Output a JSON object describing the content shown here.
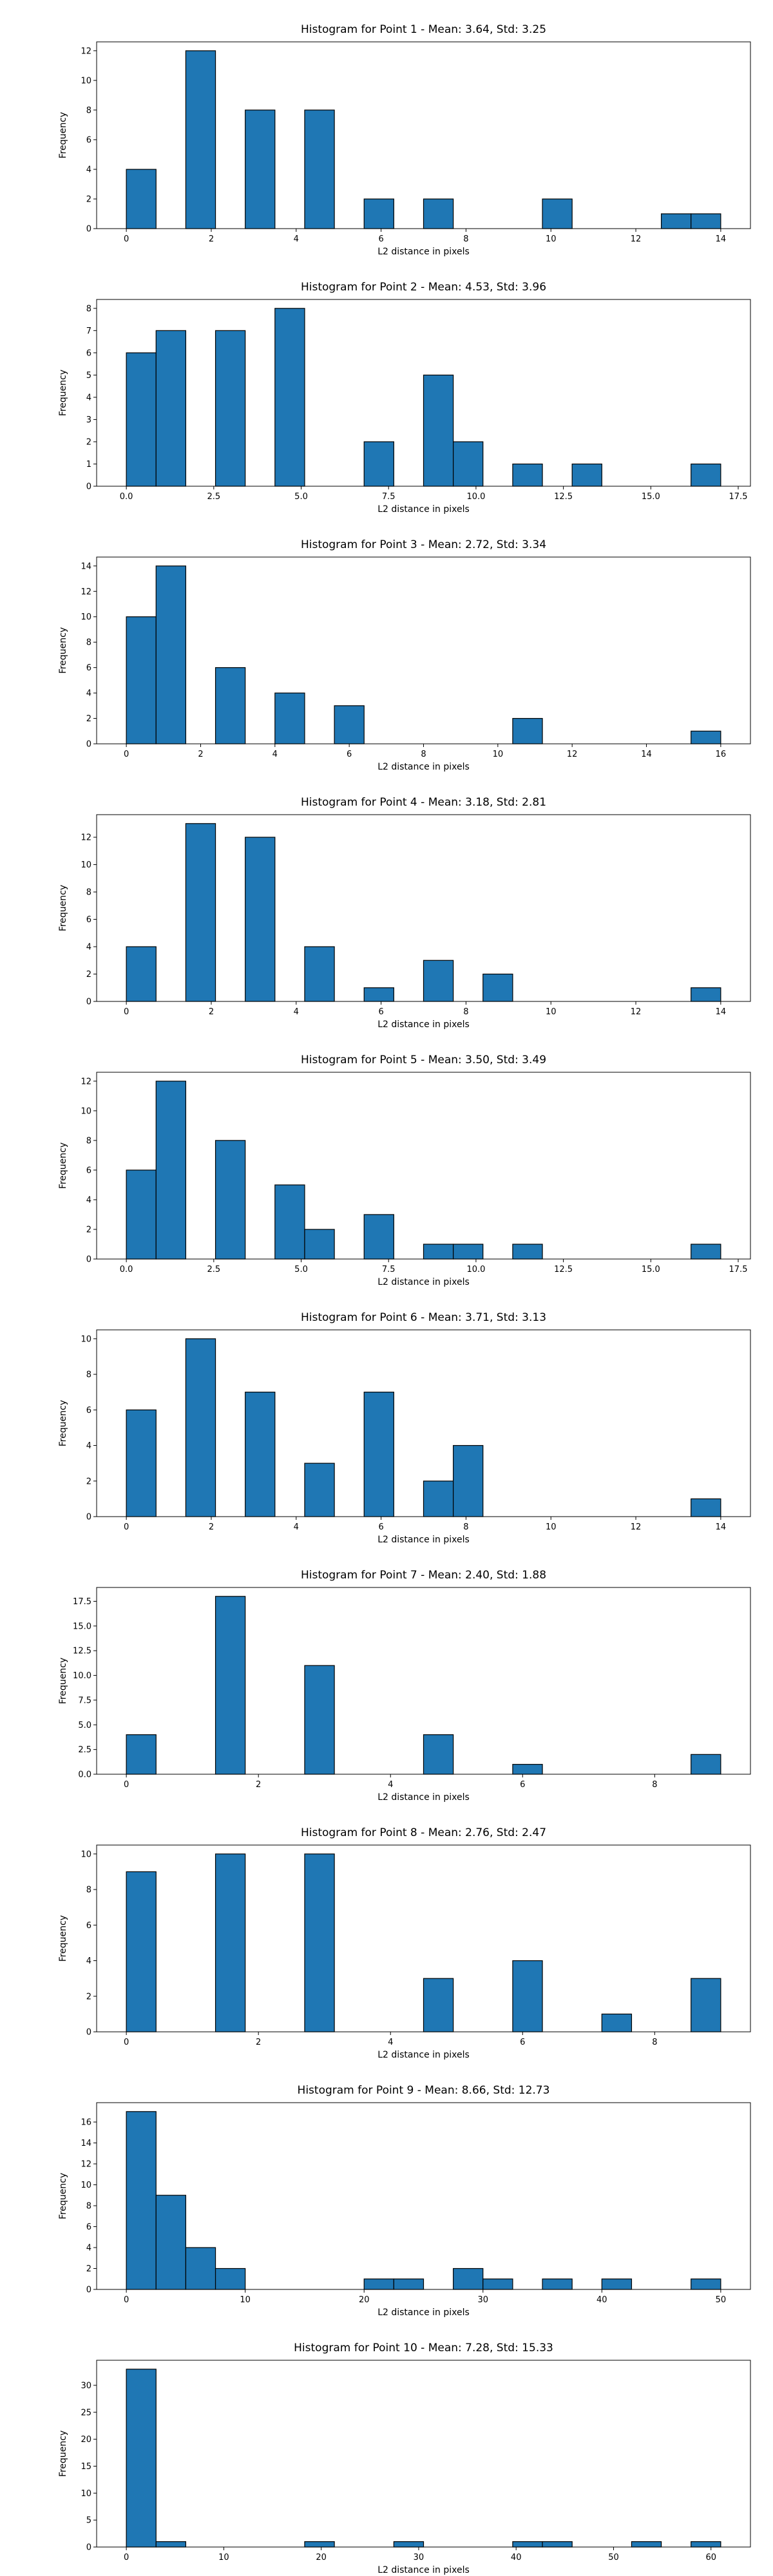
{
  "figure": {
    "bar_color": "#1f77b4",
    "edge_color": "#000000",
    "background": "#ffffff"
  },
  "chart_data": [
    {
      "type": "bar",
      "title": "Histogram for Point 1 - Mean: 3.64, Std: 3.25",
      "xlabel": "L2 distance in pixels",
      "ylabel": "Frequency",
      "xlim": [
        -0.7,
        14.7
      ],
      "ylim": [
        0,
        12.6
      ],
      "xticks": [
        0,
        2,
        4,
        6,
        8,
        10,
        12,
        14
      ],
      "yticks": [
        0,
        2,
        4,
        6,
        8,
        10,
        12
      ],
      "bin_edges": [
        0,
        0.7,
        1.4,
        2.1,
        2.8,
        3.5,
        4.2,
        4.9,
        5.6,
        6.3,
        7.0,
        7.7,
        8.4,
        9.1,
        9.8,
        10.5,
        11.2,
        11.9,
        12.6,
        13.3,
        14.0
      ],
      "counts": [
        4,
        0,
        12,
        0,
        8,
        0,
        8,
        0,
        2,
        0,
        2,
        0,
        0,
        0,
        2,
        0,
        0,
        0,
        1,
        1
      ]
    },
    {
      "type": "bar",
      "title": "Histogram for Point 2 - Mean: 4.53, Std: 3.96",
      "xlabel": "L2 distance in pixels",
      "ylabel": "Frequency",
      "xlim": [
        -0.85,
        17.85
      ],
      "ylim": [
        0,
        8.4
      ],
      "xticks": [
        0.0,
        2.5,
        5.0,
        7.5,
        10.0,
        12.5,
        15.0,
        17.5
      ],
      "xtick_labels": [
        "0.0",
        "2.5",
        "5.0",
        "7.5",
        "10.0",
        "12.5",
        "15.0",
        "17.5"
      ],
      "yticks": [
        0,
        1,
        2,
        3,
        4,
        5,
        6,
        7,
        8
      ],
      "bin_edges": [
        0,
        0.85,
        1.7,
        2.55,
        3.4,
        4.25,
        5.1,
        5.95,
        6.8,
        7.65,
        8.5,
        9.35,
        10.2,
        11.05,
        11.9,
        12.75,
        13.6,
        14.45,
        15.3,
        16.15,
        17.0
      ],
      "counts": [
        6,
        7,
        0,
        7,
        0,
        8,
        0,
        0,
        2,
        0,
        5,
        2,
        0,
        1,
        0,
        1,
        0,
        0,
        0,
        1
      ]
    },
    {
      "type": "bar",
      "title": "Histogram for Point 3 - Mean: 2.72, Std: 3.34",
      "xlabel": "L2 distance in pixels",
      "ylabel": "Frequency",
      "xlim": [
        -0.8,
        16.8
      ],
      "ylim": [
        0,
        14.7
      ],
      "xticks": [
        0,
        2,
        4,
        6,
        8,
        10,
        12,
        14,
        16
      ],
      "yticks": [
        0,
        2,
        4,
        6,
        8,
        10,
        12,
        14
      ],
      "bin_edges": [
        0,
        0.8,
        1.6,
        2.4,
        3.2,
        4.0,
        4.8,
        5.6,
        6.4,
        7.2,
        8.0,
        8.8,
        9.6,
        10.4,
        11.2,
        12.0,
        12.8,
        13.6,
        14.4,
        15.2,
        16.0
      ],
      "counts": [
        10,
        14,
        0,
        6,
        0,
        4,
        0,
        3,
        0,
        0,
        0,
        0,
        0,
        2,
        0,
        0,
        0,
        0,
        0,
        1
      ]
    },
    {
      "type": "bar",
      "title": "Histogram for Point 4 - Mean: 3.18, Std: 2.81",
      "xlabel": "L2 distance in pixels",
      "ylabel": "Frequency",
      "xlim": [
        -0.7,
        14.7
      ],
      "ylim": [
        0,
        13.65
      ],
      "xticks": [
        0,
        2,
        4,
        6,
        8,
        10,
        12,
        14
      ],
      "yticks": [
        0,
        2,
        4,
        6,
        8,
        10,
        12
      ],
      "bin_edges": [
        0,
        0.7,
        1.4,
        2.1,
        2.8,
        3.5,
        4.2,
        4.9,
        5.6,
        6.3,
        7.0,
        7.7,
        8.4,
        9.1,
        9.8,
        10.5,
        11.2,
        11.9,
        12.6,
        13.3,
        14.0
      ],
      "counts": [
        4,
        0,
        13,
        0,
        12,
        0,
        4,
        0,
        1,
        0,
        3,
        0,
        2,
        0,
        0,
        0,
        0,
        0,
        0,
        1
      ]
    },
    {
      "type": "bar",
      "title": "Histogram for Point 5 - Mean: 3.50, Std: 3.49",
      "xlabel": "L2 distance in pixels",
      "ylabel": "Frequency",
      "xlim": [
        -0.85,
        17.85
      ],
      "ylim": [
        0,
        12.6
      ],
      "xticks": [
        0.0,
        2.5,
        5.0,
        7.5,
        10.0,
        12.5,
        15.0,
        17.5
      ],
      "xtick_labels": [
        "0.0",
        "2.5",
        "5.0",
        "7.5",
        "10.0",
        "12.5",
        "15.0",
        "17.5"
      ],
      "yticks": [
        0,
        2,
        4,
        6,
        8,
        10,
        12
      ],
      "bin_edges": [
        0,
        0.85,
        1.7,
        2.55,
        3.4,
        4.25,
        5.1,
        5.95,
        6.8,
        7.65,
        8.5,
        9.35,
        10.2,
        11.05,
        11.9,
        12.75,
        13.6,
        14.45,
        15.3,
        16.15,
        17.0
      ],
      "counts": [
        6,
        12,
        0,
        8,
        0,
        5,
        2,
        0,
        3,
        0,
        1,
        1,
        0,
        1,
        0,
        0,
        0,
        0,
        0,
        1
      ]
    },
    {
      "type": "bar",
      "title": "Histogram for Point 6 - Mean: 3.71, Std: 3.13",
      "xlabel": "L2 distance in pixels",
      "ylabel": "Frequency",
      "xlim": [
        -0.7,
        14.7
      ],
      "ylim": [
        0,
        10.5
      ],
      "xticks": [
        0,
        2,
        4,
        6,
        8,
        10,
        12,
        14
      ],
      "yticks": [
        0,
        2,
        4,
        6,
        8,
        10
      ],
      "bin_edges": [
        0,
        0.7,
        1.4,
        2.1,
        2.8,
        3.5,
        4.2,
        4.9,
        5.6,
        6.3,
        7.0,
        7.7,
        8.4,
        9.1,
        9.8,
        10.5,
        11.2,
        11.9,
        12.6,
        13.3,
        14.0
      ],
      "counts": [
        6,
        0,
        10,
        0,
        7,
        0,
        3,
        0,
        7,
        0,
        2,
        4,
        0,
        0,
        0,
        0,
        0,
        0,
        0,
        1
      ]
    },
    {
      "type": "bar",
      "title": "Histogram for Point 7 - Mean: 2.40, Std: 1.88",
      "xlabel": "L2 distance in pixels",
      "ylabel": "Frequency",
      "xlim": [
        -0.45,
        9.45
      ],
      "ylim": [
        0,
        18.9
      ],
      "xticks": [
        0,
        2,
        4,
        6,
        8
      ],
      "yticks": [
        0.0,
        2.5,
        5.0,
        7.5,
        10.0,
        12.5,
        15.0,
        17.5
      ],
      "ytick_labels": [
        "0.0",
        "2.5",
        "5.0",
        "7.5",
        "10.0",
        "12.5",
        "15.0",
        "17.5"
      ],
      "bin_edges": [
        0,
        0.45,
        0.9,
        1.35,
        1.8,
        2.25,
        2.7,
        3.15,
        3.6,
        4.05,
        4.5,
        4.95,
        5.4,
        5.85,
        6.3,
        6.75,
        7.2,
        7.65,
        8.1,
        8.55,
        9.0
      ],
      "counts": [
        4,
        0,
        0,
        18,
        0,
        0,
        11,
        0,
        0,
        0,
        4,
        0,
        0,
        1,
        0,
        0,
        0,
        0,
        0,
        2
      ]
    },
    {
      "type": "bar",
      "title": "Histogram for Point 8 - Mean: 2.76, Std: 2.47",
      "xlabel": "L2 distance in pixels",
      "ylabel": "Frequency",
      "xlim": [
        -0.45,
        9.45
      ],
      "ylim": [
        0,
        10.5
      ],
      "xticks": [
        0,
        2,
        4,
        6,
        8
      ],
      "yticks": [
        0,
        2,
        4,
        6,
        8,
        10
      ],
      "bin_edges": [
        0,
        0.45,
        0.9,
        1.35,
        1.8,
        2.25,
        2.7,
        3.15,
        3.6,
        4.05,
        4.5,
        4.95,
        5.4,
        5.85,
        6.3,
        6.75,
        7.2,
        7.65,
        8.1,
        8.55,
        9.0
      ],
      "counts": [
        9,
        0,
        0,
        10,
        0,
        0,
        10,
        0,
        0,
        0,
        3,
        0,
        0,
        4,
        0,
        0,
        1,
        0,
        0,
        3
      ]
    },
    {
      "type": "bar",
      "title": "Histogram for Point 9 - Mean: 8.66, Std: 12.73",
      "xlabel": "L2 distance in pixels",
      "ylabel": "Frequency",
      "xlim": [
        -2.5,
        52.5
      ],
      "ylim": [
        0,
        17.85
      ],
      "xticks": [
        0,
        10,
        20,
        30,
        40,
        50
      ],
      "yticks": [
        0,
        2,
        4,
        6,
        8,
        10,
        12,
        14,
        16
      ],
      "bin_edges": [
        0,
        2.5,
        5.0,
        7.5,
        10.0,
        12.5,
        15.0,
        17.5,
        20.0,
        22.5,
        25.0,
        27.5,
        30.0,
        32.5,
        35.0,
        37.5,
        40.0,
        42.5,
        45.0,
        47.5,
        50.0
      ],
      "counts": [
        17,
        9,
        4,
        2,
        0,
        0,
        0,
        0,
        1,
        1,
        0,
        2,
        1,
        0,
        1,
        0,
        1,
        0,
        0,
        1
      ]
    },
    {
      "type": "bar",
      "title": "Histogram for Point 10 - Mean: 7.28, Std: 15.33",
      "xlabel": "L2 distance in pixels",
      "ylabel": "Frequency",
      "xlim": [
        -3.05,
        64.05
      ],
      "ylim": [
        0,
        34.65
      ],
      "xticks": [
        0,
        10,
        20,
        30,
        40,
        50,
        60
      ],
      "yticks": [
        0,
        5,
        10,
        15,
        20,
        25,
        30
      ],
      "bin_edges": [
        0,
        3.05,
        6.1,
        9.15,
        12.2,
        15.25,
        18.3,
        21.35,
        24.4,
        27.45,
        30.5,
        33.55,
        36.6,
        39.65,
        42.7,
        45.75,
        48.8,
        51.85,
        54.9,
        57.95,
        61.0
      ],
      "counts": [
        33,
        1,
        0,
        0,
        0,
        0,
        1,
        0,
        0,
        1,
        0,
        0,
        0,
        1,
        1,
        0,
        0,
        1,
        0,
        1
      ]
    }
  ]
}
